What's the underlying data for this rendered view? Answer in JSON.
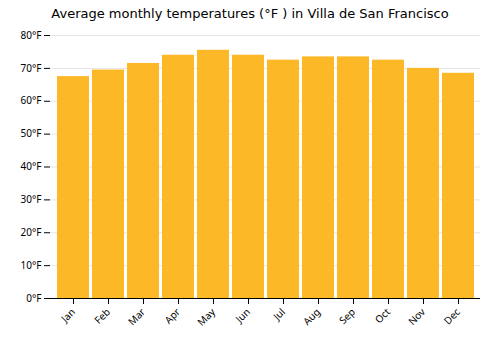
{
  "chart_data": {
    "type": "bar",
    "title": "Average monthly temperatures (°F ) in Villa de San Francisco",
    "categories": [
      "Jan",
      "Feb",
      "Mar",
      "Apr",
      "May",
      "Jun",
      "Jul",
      "Aug",
      "Sep",
      "Oct",
      "Nov",
      "Dec"
    ],
    "values": [
      67.5,
      69.5,
      71.5,
      74.0,
      75.5,
      74.0,
      72.5,
      73.5,
      73.5,
      72.5,
      70.0,
      68.5
    ],
    "color": "#FDB827",
    "ylim": [
      0,
      80
    ],
    "yticks": [
      {
        "value": 0,
        "label": "0°F"
      },
      {
        "value": 10,
        "label": "10°F"
      },
      {
        "value": 20,
        "label": "20°F"
      },
      {
        "value": 30,
        "label": "30°F"
      },
      {
        "value": 40,
        "label": "40°F"
      },
      {
        "value": 50,
        "label": "50°F"
      },
      {
        "value": 60,
        "label": "60°F"
      },
      {
        "value": 70,
        "label": "70°F"
      },
      {
        "value": 80,
        "label": "80°F"
      }
    ],
    "grid": true
  }
}
